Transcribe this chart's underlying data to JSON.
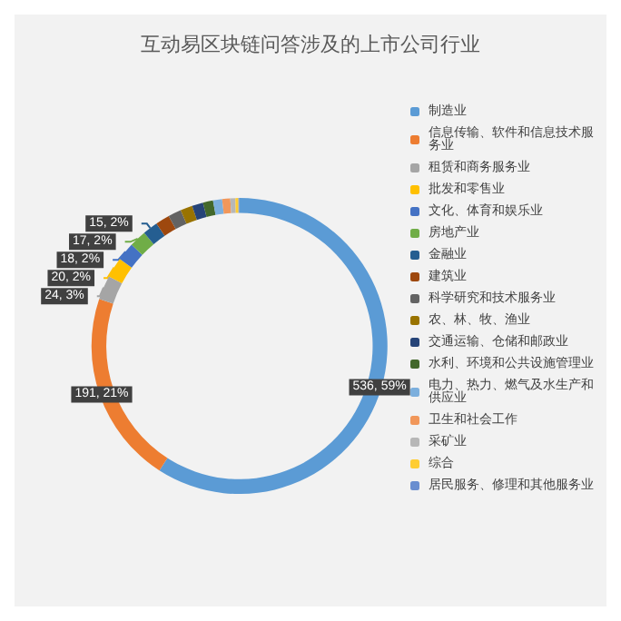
{
  "chart_data": {
    "type": "donut",
    "title": "互动易区块链问答涉及的上市公司行业",
    "categories": [
      "制造业",
      "信息传输、软件和信息技术服务业",
      "租赁和商务服务业",
      "批发和零售业",
      "文化、体育和娱乐业",
      "房地产业",
      "金融业",
      "建筑业",
      "科学研究和技术服务业",
      "农、林、牧、渔业",
      "交通运输、仓储和邮政业",
      "水利、环境和公共设施管理业",
      "电力、热力、燃气及水生产和供应业",
      "卫生和社会工作",
      "采矿业",
      "综合",
      "居民服务、修理和其他服务业"
    ],
    "values": [
      536,
      191,
      24,
      20,
      18,
      17,
      15,
      14,
      13,
      12,
      11,
      10,
      9,
      8,
      5,
      3,
      1
    ],
    "colors": [
      "#5b9bd5",
      "#ed7d31",
      "#a5a5a5",
      "#ffc000",
      "#4472c4",
      "#70ad47",
      "#255e91",
      "#9e480e",
      "#636363",
      "#997300",
      "#264478",
      "#43682b",
      "#7cafdd",
      "#f1975a",
      "#b7b7b7",
      "#ffcd33",
      "#698ed0"
    ],
    "value_labels": [
      "536, 59%",
      "191, 21%",
      "24, 3%",
      "20, 2%",
      "18, 2%",
      "17, 2%",
      "15, 2%",
      null,
      null,
      null,
      null,
      null,
      null,
      null,
      null,
      null,
      null
    ],
    "legend": "right"
  }
}
